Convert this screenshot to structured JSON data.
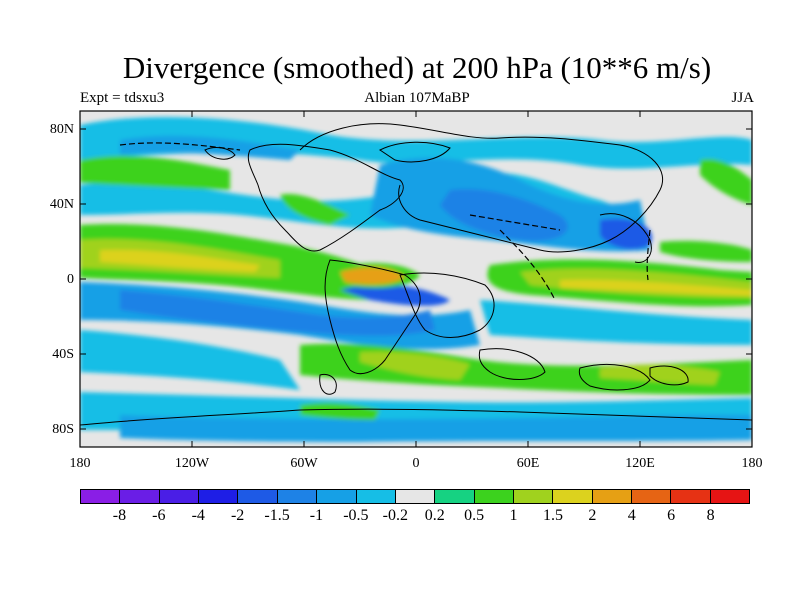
{
  "title": "Divergence (smoothed) at 200 hPa (10**6 m/s)",
  "subtitle_left": "Expt = tdsxu3",
  "subtitle_center": "Albian   107MaBP",
  "subtitle_right": "JJA",
  "lat_labels": [
    "80N",
    "40N",
    "0",
    "40S",
    "80S"
  ],
  "lon_labels": [
    "180",
    "120W",
    "60W",
    "0",
    "60E",
    "120E",
    "180"
  ],
  "colorbar": {
    "labels": [
      "-8",
      "-6",
      "-4",
      "-2",
      "-1.5",
      "-1",
      "-0.5",
      "-0.2",
      "0.2",
      "0.5",
      "1",
      "1.5",
      "2",
      "4",
      "6",
      "8"
    ],
    "colors": [
      "#8a1ee6",
      "#6a1ee6",
      "#4a1ee6",
      "#1e1ee6",
      "#1e5ae6",
      "#1e82e6",
      "#16a0e6",
      "#16bee6",
      "#e6e6e6",
      "#16d282",
      "#3cd21e",
      "#a0d21e",
      "#dcd21e",
      "#e6a014",
      "#e66414",
      "#e63214",
      "#e61414"
    ]
  }
}
